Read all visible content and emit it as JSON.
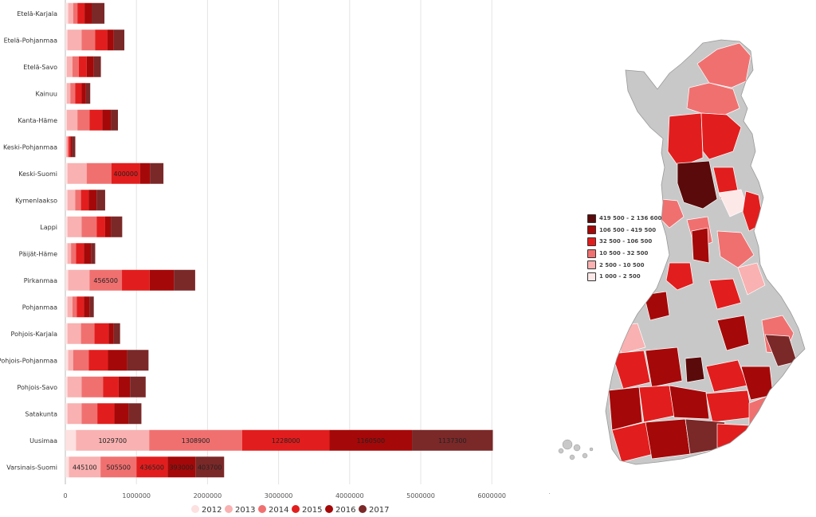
{
  "chart_data": {
    "type": "bar",
    "orientation": "horizontal",
    "stacked": true,
    "categories": [
      "Etelä-Karjala",
      "Etelä-Pohjanmaa",
      "Etelä-Savo",
      "Kainuu",
      "Kanta-Häme",
      "Keski-Pohjanmaa",
      "Keski-Suomi",
      "Kymenlaakso",
      "Lappi",
      "Päijät-Häme",
      "Pirkanmaa",
      "Pohjanmaa",
      "Pohjois-Karjala",
      "Pohjois-Pohjanmaa",
      "Pohjois-Savo",
      "Satakunta",
      "Uusimaa",
      "Varsinais-Suomi"
    ],
    "series": [
      {
        "name": "2012",
        "color": "#fde0e0",
        "values": [
          40000,
          30000,
          20000,
          20000,
          20000,
          10000,
          30000,
          30000,
          30000,
          30000,
          40000,
          30000,
          30000,
          40000,
          30000,
          30000,
          150000,
          50000
        ]
      },
      {
        "name": "2013",
        "color": "#f9b1b1",
        "values": [
          70000,
          200000,
          80000,
          50000,
          150000,
          20000,
          270000,
          110000,
          200000,
          50000,
          300000,
          70000,
          190000,
          70000,
          200000,
          200000,
          1029700,
          445100
        ]
      },
      {
        "name": "2014",
        "color": "#f07070",
        "values": [
          60000,
          190000,
          90000,
          70000,
          170000,
          20000,
          350000,
          80000,
          210000,
          70000,
          456500,
          60000,
          190000,
          220000,
          300000,
          220000,
          1308900,
          505500
        ]
      },
      {
        "name": "2015",
        "color": "#e21d1d",
        "values": [
          100000,
          170000,
          110000,
          90000,
          180000,
          20000,
          400000,
          110000,
          120000,
          110000,
          390000,
          100000,
          200000,
          270000,
          220000,
          240000,
          1228000,
          436500
        ]
      },
      {
        "name": "2016",
        "color": "#a50808",
        "values": [
          100000,
          90000,
          100000,
          60000,
          120000,
          20000,
          140000,
          110000,
          80000,
          100000,
          340000,
          80000,
          70000,
          270000,
          160000,
          200000,
          1160500,
          393000
        ]
      },
      {
        "name": "2017",
        "color": "#7b2828",
        "values": [
          180000,
          150000,
          100000,
          60000,
          100000,
          50000,
          190000,
          120000,
          160000,
          60000,
          300000,
          60000,
          90000,
          300000,
          220000,
          180000,
          1137300,
          403700
        ]
      }
    ],
    "data_labels": [
      {
        "category": "Keski-Suomi",
        "series": "2015",
        "text": "400000"
      },
      {
        "category": "Pirkanmaa",
        "series": "2014",
        "text": "456500"
      },
      {
        "category": "Uusimaa",
        "series": "2013",
        "text": "1029700"
      },
      {
        "category": "Uusimaa",
        "series": "2014",
        "text": "1308900"
      },
      {
        "category": "Uusimaa",
        "series": "2015",
        "text": "1228000"
      },
      {
        "category": "Uusimaa",
        "series": "2016",
        "text": "1160500"
      },
      {
        "category": "Uusimaa",
        "series": "2017",
        "text": "1137300"
      },
      {
        "category": "Varsinais-Suomi",
        "series": "2013",
        "text": "445100"
      },
      {
        "category": "Varsinais-Suomi",
        "series": "2014",
        "text": "505500"
      },
      {
        "category": "Varsinais-Suomi",
        "series": "2015",
        "text": "436500"
      },
      {
        "category": "Varsinais-Suomi",
        "series": "2016",
        "text": "393000"
      },
      {
        "category": "Varsinais-Suomi",
        "series": "2017",
        "text": "403700"
      }
    ],
    "xlim": [
      0,
      7000000
    ],
    "xticks": [
      0,
      1000000,
      2000000,
      3000000,
      4000000,
      5000000,
      6000000,
      7000000
    ],
    "grid": true,
    "legend_position": "bottom"
  },
  "map": {
    "legend": [
      {
        "label": "419 500 - 2 136 600",
        "color": "#5a0a0a"
      },
      {
        "label": "106 500 - 419 500",
        "color": "#a50808"
      },
      {
        "label": "32 500 - 106 500",
        "color": "#e21d1d"
      },
      {
        "label": "10 500 - 32 500",
        "color": "#f07070"
      },
      {
        "label": "2 500 - 10 500",
        "color": "#f9b1b1"
      },
      {
        "label": "1 000 - 2 500",
        "color": "#fde8e8"
      }
    ],
    "no_data_color": "#c8c8c8"
  }
}
